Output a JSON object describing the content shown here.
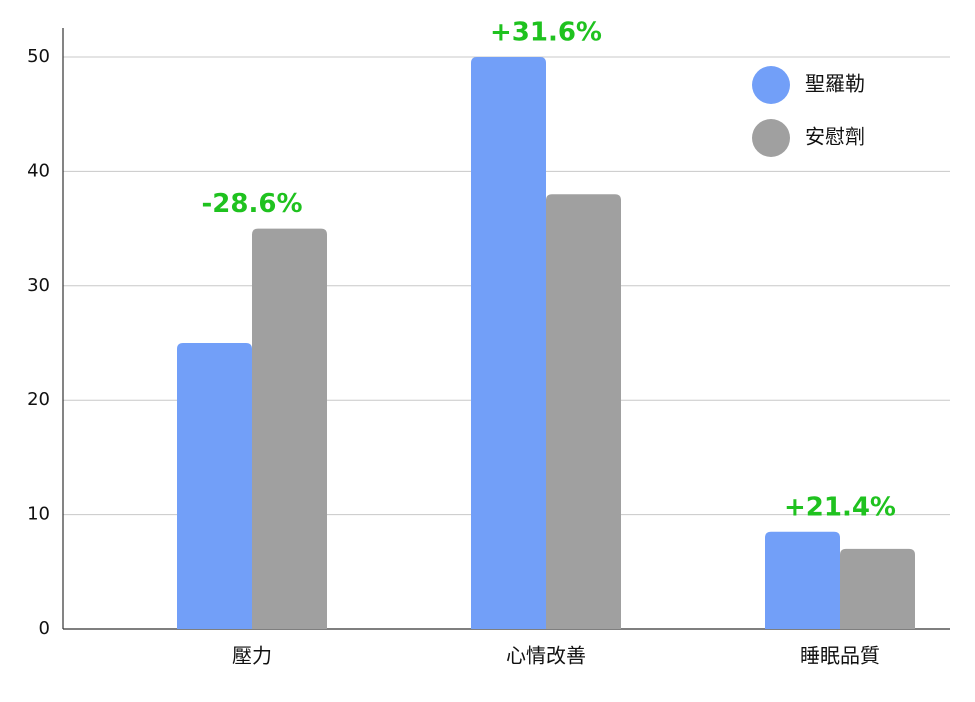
{
  "chart_data": {
    "type": "bar",
    "categories": [
      "壓力",
      "心情改善",
      "睡眠品質"
    ],
    "series": [
      {
        "name": "聖羅勒",
        "color": "#729ff8",
        "values": [
          25,
          50,
          8.5
        ]
      },
      {
        "name": "安慰劑",
        "color": "#a0a0a0",
        "values": [
          35,
          38,
          7
        ]
      }
    ],
    "annotations": [
      "-28.6%",
      "+31.6%",
      "+21.4%"
    ],
    "ylim": [
      0,
      50
    ],
    "yticks": [
      0,
      10,
      20,
      30,
      40,
      50
    ],
    "grid": true,
    "legend": "top-right"
  }
}
